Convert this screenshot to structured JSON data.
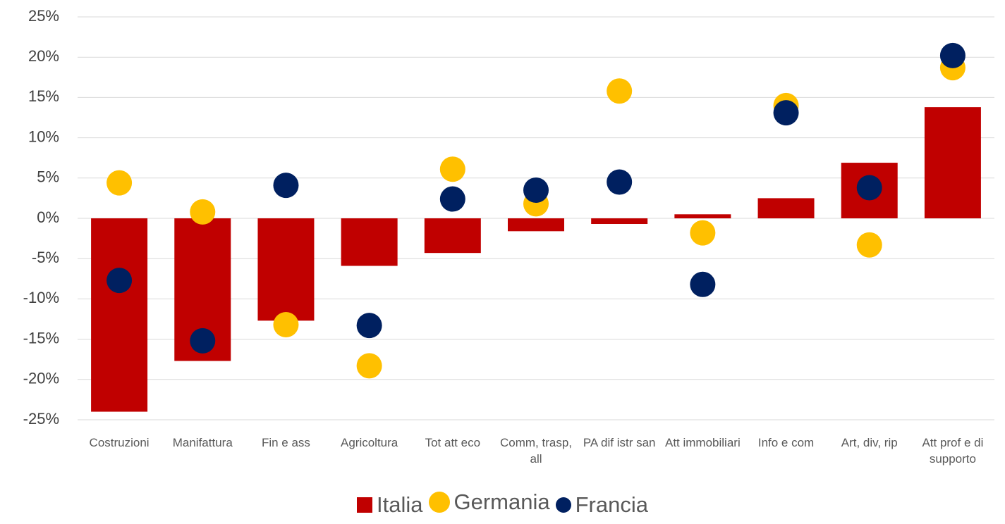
{
  "chart_data": {
    "type": "bar",
    "categories": [
      "Costruzioni",
      "Manifattura",
      "Fin e ass",
      "Agricoltura",
      "Tot att eco",
      "Comm, trasp, all",
      "PA dif istr san",
      "Att immobiliari",
      "Info e com",
      "Art, div, rip",
      "Att prof e di supporto"
    ],
    "series": [
      {
        "name": "Italia",
        "type": "bar",
        "color": "#c00000",
        "values": [
          -24,
          -17.7,
          -12.7,
          -5.9,
          -4.3,
          -1.6,
          -0.7,
          0.5,
          2.5,
          6.9,
          13.8
        ]
      },
      {
        "name": "Germania",
        "type": "scatter",
        "color": "#ffc000",
        "values": [
          4.4,
          0.8,
          -13.2,
          -18.3,
          6.1,
          1.8,
          15.8,
          -1.8,
          14.0,
          -3.3,
          18.7
        ]
      },
      {
        "name": "Francia",
        "type": "scatter",
        "color": "#002060",
        "values": [
          -7.7,
          -15.2,
          4.1,
          -13.3,
          2.4,
          3.5,
          4.5,
          -8.2,
          13.1,
          3.8,
          20.2
        ]
      }
    ],
    "ylim": [
      -25,
      25
    ],
    "yticks": [
      {
        "value": -25,
        "label": "-25%"
      },
      {
        "value": -20,
        "label": "-20%"
      },
      {
        "value": -15,
        "label": "-15%"
      },
      {
        "value": -10,
        "label": "-10%"
      },
      {
        "value": -5,
        "label": "-5%"
      },
      {
        "value": 0,
        "label": "0%"
      },
      {
        "value": 5,
        "label": "5%"
      },
      {
        "value": 10,
        "label": "10%"
      },
      {
        "value": 15,
        "label": "15%"
      },
      {
        "value": 20,
        "label": "20%"
      },
      {
        "value": 25,
        "label": "25%"
      }
    ],
    "grid": true,
    "legend": "bottom"
  }
}
